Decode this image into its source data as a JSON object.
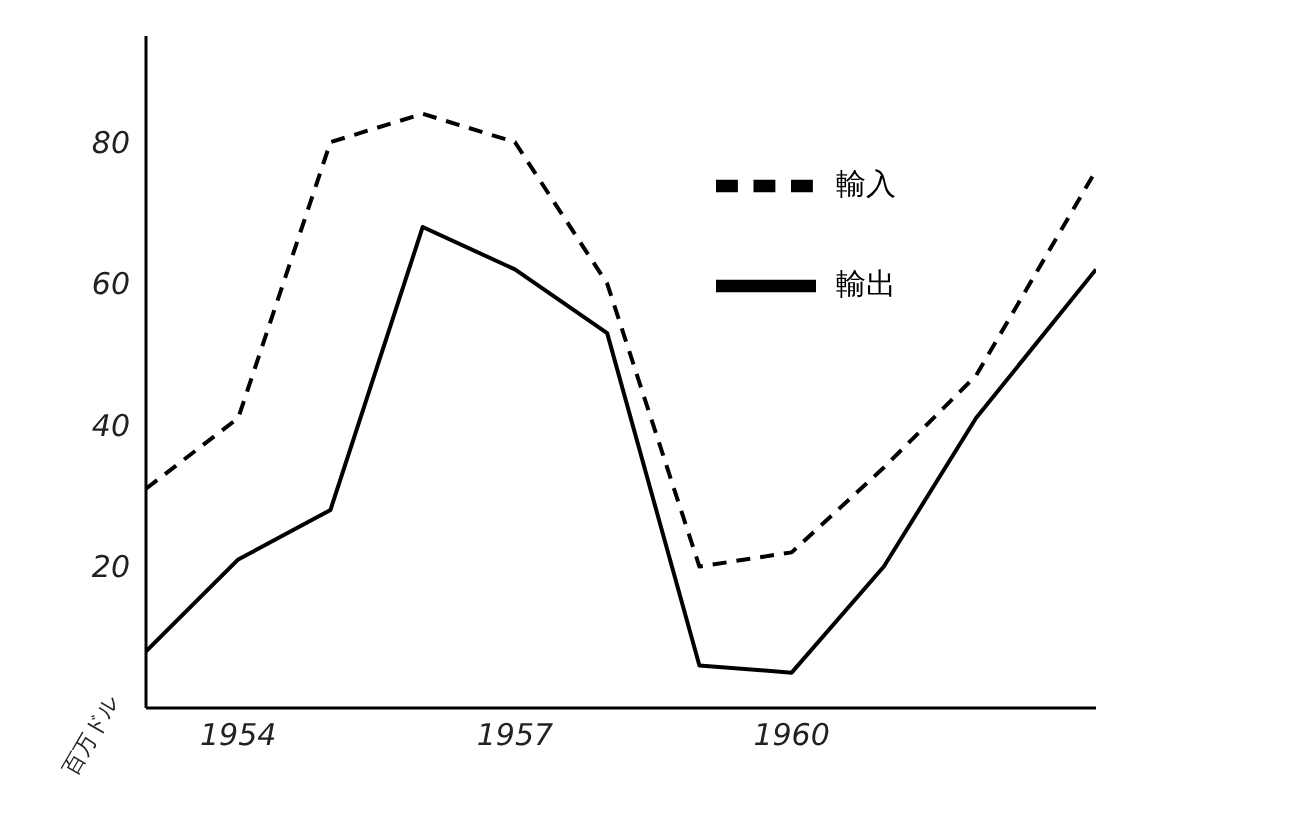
{
  "chart_data": {
    "type": "line",
    "ylabel": "百万ドル",
    "x": [
      1953,
      1954,
      1955,
      1956,
      1957,
      1958,
      1959,
      1960,
      1961,
      1962,
      1963.3
    ],
    "series": [
      {
        "name": "輸入",
        "color": "#000000",
        "line_style": "dashed",
        "values": [
          31,
          41,
          80,
          84,
          80,
          60,
          20,
          22,
          34,
          47,
          76
        ]
      },
      {
        "name": "輸出",
        "color": "#000000",
        "line_style": "solid",
        "values": [
          8,
          21,
          28,
          68,
          62,
          53,
          6,
          5,
          20,
          41,
          62
        ]
      }
    ],
    "xlim": [
      1953,
      1963.3
    ],
    "xticks": [
      1954,
      1957,
      1960
    ],
    "ylim": [
      0,
      95
    ],
    "yticks": [
      20,
      40,
      60,
      80
    ],
    "grid": false,
    "legend": "top right",
    "marker": "none"
  }
}
